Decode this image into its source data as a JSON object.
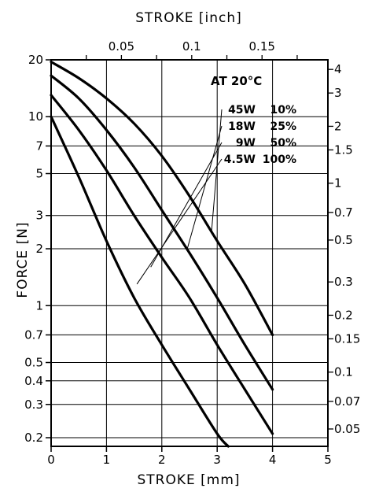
{
  "chart_data": {
    "type": "line",
    "title": "",
    "xlabel": "STROKE [mm]",
    "ylabel": "FORCE [N]",
    "top_xlabel": "STROKE [inch]",
    "temperature_note": "AT 20°C",
    "xlim": [
      0,
      5
    ],
    "ylim": [
      0.18,
      20
    ],
    "y_scale": "log",
    "grid": true,
    "x_ticks": [
      0,
      1,
      2,
      3,
      4,
      5
    ],
    "x_tick_labels": [
      "0",
      "1",
      "2",
      "3",
      "4",
      "5"
    ],
    "y_ticks": [
      20,
      10,
      7,
      5,
      3,
      2,
      1,
      0.7,
      0.5,
      0.4,
      0.3,
      0.2
    ],
    "y_tick_labels": [
      "20",
      "10",
      "7",
      "5",
      "3",
      "2",
      "1",
      "0.7",
      "0.5",
      "0.4",
      "0.3",
      "0.2"
    ],
    "top_x_ticks": [
      0.05,
      0.1,
      0.15
    ],
    "top_x_tick_labels": [
      "0.05",
      "0.1",
      "0.15"
    ],
    "right_y_ticks": [
      4,
      3,
      2,
      1.5,
      1,
      0.7,
      0.5,
      0.3,
      0.2,
      0.15,
      0.1,
      0.07,
      0.05
    ],
    "right_y_tick_labels": [
      "4",
      "3",
      "2",
      "1.5",
      "1",
      "0.7",
      "0.5",
      "0.3",
      "0.2",
      "0.15",
      "0.1",
      "0.07",
      "0.05"
    ],
    "series": [
      {
        "name": "45W 10%",
        "x": [
          0,
          0.5,
          1,
          1.5,
          2,
          2.5,
          3,
          3.5,
          4
        ],
        "y": [
          19.5,
          16.0,
          12.5,
          9.2,
          6.2,
          3.8,
          2.2,
          1.3,
          0.7
        ]
      },
      {
        "name": "18W 25%",
        "x": [
          0,
          0.5,
          1,
          1.5,
          2,
          2.5,
          3,
          3.5,
          4
        ],
        "y": [
          16.5,
          12.5,
          8.5,
          5.4,
          3.2,
          1.9,
          1.1,
          0.62,
          0.36
        ]
      },
      {
        "name": "9W 50%",
        "x": [
          0,
          0.5,
          1,
          1.5,
          2,
          2.5,
          3,
          3.5,
          4
        ],
        "y": [
          13.0,
          8.5,
          5.2,
          3.0,
          1.8,
          1.1,
          0.62,
          0.36,
          0.21
        ]
      },
      {
        "name": "4.5W 100%",
        "x": [
          0,
          0.5,
          1,
          1.5,
          2,
          2.5,
          3,
          3.2
        ],
        "y": [
          10.0,
          4.8,
          2.2,
          1.1,
          0.62,
          0.36,
          0.21,
          0.18
        ]
      }
    ]
  }
}
